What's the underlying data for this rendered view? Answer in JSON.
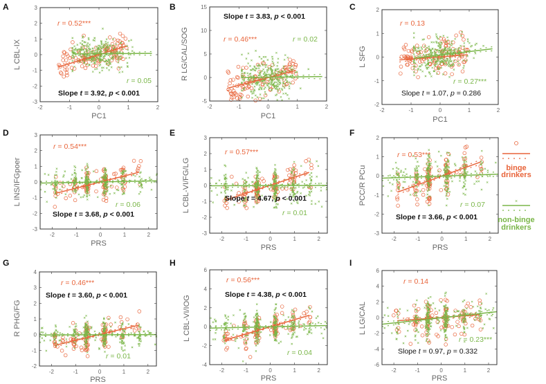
{
  "colors": {
    "binge": "#e8643a",
    "nonbinge": "#7ab648",
    "axis": "#333333",
    "tick_text": "#666666"
  },
  "legend": {
    "binge": {
      "line1": "binge",
      "line2": "drinkers"
    },
    "nonbinge": {
      "line1": "non-binge",
      "line2": "drinkers"
    }
  },
  "chart_data": [
    {
      "panel": "A",
      "type": "scatter",
      "xlabel": "PC1",
      "ylabel": "L CBL-IX",
      "xlim": [
        -2,
        2
      ],
      "ylim": [
        -3,
        3
      ],
      "xticks": [
        -2,
        -1,
        0,
        1,
        2
      ],
      "yticks": [
        -3,
        -2,
        -1,
        0,
        1,
        2,
        3
      ],
      "r_binge": "0.52***",
      "r_nonbinge": "0.05",
      "slope_t": "3.92",
      "slope_p": "< 0.001",
      "significant": true,
      "series": [
        {
          "name": "binge drinkers",
          "n": 110,
          "resid_sd": 0.5,
          "fit": [
            [
              -1.4,
              -0.8
            ],
            [
              0.95,
              0.55
            ]
          ]
        },
        {
          "name": "non-binge drinkers",
          "n": 300,
          "resid_sd": 0.5,
          "fit": [
            [
              -0.9,
              0.05
            ],
            [
              1.8,
              0.08
            ]
          ]
        }
      ]
    },
    {
      "panel": "B",
      "type": "scatter",
      "xlabel": "PC1",
      "ylabel": "R LG/CAL/SOG",
      "xlim": [
        -2,
        2
      ],
      "ylim": [
        -5,
        15
      ],
      "xticks": [
        -2,
        -1,
        0,
        1,
        2
      ],
      "yticks": [
        -5,
        0,
        5,
        10,
        15
      ],
      "r_binge": "0.46***",
      "r_nonbinge": "0.02",
      "slope_t": "3.83",
      "slope_p": "< 0.001",
      "significant": true,
      "series": [
        {
          "name": "binge drinkers",
          "n": 110,
          "resid_sd": 1.8,
          "fit": [
            [
              -1.4,
              -2.3
            ],
            [
              0.95,
              1.5
            ]
          ]
        },
        {
          "name": "non-binge drinkers",
          "n": 300,
          "resid_sd": 2.0,
          "fit": [
            [
              -0.9,
              0.0
            ],
            [
              1.85,
              0.2
            ]
          ]
        }
      ]
    },
    {
      "panel": "C",
      "type": "scatter",
      "xlabel": "PC1",
      "ylabel": "L SFG",
      "xlim": [
        -2,
        2
      ],
      "ylim": [
        -2,
        2
      ],
      "xticks": [
        -2,
        -1,
        0,
        1,
        2
      ],
      "yticks": [
        -2,
        -1,
        0,
        1,
        2
      ],
      "r_binge": "0.13",
      "r_nonbinge": "0.27***",
      "slope_t": "1.07",
      "slope_p": "= 0.286",
      "significant": false,
      "series": [
        {
          "name": "binge drinkers",
          "n": 110,
          "resid_sd": 0.35,
          "fit": [
            [
              -1.4,
              -0.12
            ],
            [
              0.95,
              0.1
            ]
          ]
        },
        {
          "name": "non-binge drinkers",
          "n": 300,
          "resid_sd": 0.35,
          "fit": [
            [
              -0.9,
              -0.05
            ],
            [
              1.8,
              0.35
            ]
          ]
        }
      ]
    },
    {
      "panel": "D",
      "type": "scatter",
      "xlabel": "PRS",
      "ylabel": "L INS/IFGpoer",
      "xlim": [
        -2.5,
        2.35
      ],
      "ylim": [
        -3,
        3
      ],
      "xticks": [
        -2,
        -1,
        0,
        1,
        2
      ],
      "yticks": [
        -3,
        -2,
        -1,
        0,
        1,
        2,
        3
      ],
      "r_binge": "0.54***",
      "r_nonbinge": "0.06",
      "slope_t": "3.68",
      "slope_p": "< 0.001",
      "significant": true,
      "series": [
        {
          "name": "binge drinkers",
          "n": 110,
          "resid_sd": 0.45,
          "fit": [
            [
              -1.85,
              -0.72
            ],
            [
              1.6,
              0.62
            ]
          ]
        },
        {
          "name": "non-binge drinkers",
          "n": 300,
          "resid_sd": 0.45,
          "fit": [
            [
              -2.5,
              -0.07
            ],
            [
              2.35,
              0.07
            ]
          ]
        }
      ]
    },
    {
      "panel": "E",
      "type": "scatter",
      "xlabel": "PRS",
      "ylabel": "L CBL-VI/FG/LG",
      "xlim": [
        -2.5,
        2.35
      ],
      "ylim": [
        -3,
        3
      ],
      "xticks": [
        -2,
        -1,
        0,
        1,
        2
      ],
      "yticks": [
        -3,
        -2,
        -1,
        0,
        1,
        2,
        3
      ],
      "r_binge": "0.57***",
      "r_nonbinge": "0.01",
      "slope_t": "4.67",
      "slope_p": "< 0.001",
      "significant": true,
      "series": [
        {
          "name": "binge drinkers",
          "n": 110,
          "resid_sd": 0.5,
          "fit": [
            [
              -1.85,
              -0.92
            ],
            [
              1.6,
              0.82
            ]
          ]
        },
        {
          "name": "non-binge drinkers",
          "n": 300,
          "resid_sd": 0.6,
          "fit": [
            [
              -2.5,
              -0.02
            ],
            [
              2.35,
              0.0
            ]
          ]
        }
      ]
    },
    {
      "panel": "F",
      "type": "scatter",
      "xlabel": "PRS",
      "ylabel": "PCC/R PCu",
      "xlim": [
        -2.5,
        2.35
      ],
      "ylim": [
        -3,
        2
      ],
      "xticks": [
        -2,
        -1,
        0,
        1,
        2
      ],
      "yticks": [
        -3,
        -2,
        -1,
        0,
        1,
        2
      ],
      "r_binge": "0.53***",
      "r_nonbinge": "0.07",
      "slope_t": "3.66",
      "slope_p": "< 0.001",
      "significant": true,
      "series": [
        {
          "name": "binge drinkers",
          "n": 110,
          "resid_sd": 0.5,
          "fit": [
            [
              -1.85,
              -0.85
            ],
            [
              1.6,
              0.72
            ]
          ]
        },
        {
          "name": "non-binge drinkers",
          "n": 300,
          "resid_sd": 0.5,
          "fit": [
            [
              -2.5,
              -0.12
            ],
            [
              2.35,
              0.09
            ]
          ]
        }
      ]
    },
    {
      "panel": "G",
      "type": "scatter",
      "xlabel": "PRS",
      "ylabel": "R PHG/FG",
      "xlim": [
        -2.5,
        2.35
      ],
      "ylim": [
        -2,
        4
      ],
      "xticks": [
        -2,
        -1,
        0,
        1,
        2
      ],
      "yticks": [
        -2,
        -1,
        0,
        1,
        2,
        3,
        4
      ],
      "r_binge": "0.46***",
      "r_nonbinge": "0.01",
      "slope_t": "3.60",
      "slope_p": "< 0.001",
      "significant": true,
      "series": [
        {
          "name": "binge drinkers",
          "n": 110,
          "resid_sd": 0.45,
          "fit": [
            [
              -1.85,
              -0.68
            ],
            [
              1.6,
              0.6
            ]
          ]
        },
        {
          "name": "non-binge drinkers",
          "n": 300,
          "resid_sd": 0.45,
          "fit": [
            [
              -2.5,
              -0.02
            ],
            [
              2.35,
              0.0
            ]
          ]
        }
      ]
    },
    {
      "panel": "H",
      "type": "scatter",
      "xlabel": "PRS",
      "ylabel": "L CBL-VI/IOG",
      "xlim": [
        -2.5,
        2.35
      ],
      "ylim": [
        -4,
        6
      ],
      "xticks": [
        -2,
        -1,
        0,
        1,
        2
      ],
      "yticks": [
        -4,
        -2,
        0,
        2,
        4,
        6
      ],
      "r_binge": "0.56***",
      "r_nonbinge": "0.04",
      "slope_t": "4.38",
      "slope_p": "< 0.001",
      "significant": true,
      "series": [
        {
          "name": "binge drinkers",
          "n": 110,
          "resid_sd": 0.8,
          "fit": [
            [
              -1.85,
              -1.4
            ],
            [
              1.6,
              1.2
            ]
          ]
        },
        {
          "name": "non-binge drinkers",
          "n": 300,
          "resid_sd": 1.0,
          "fit": [
            [
              -2.5,
              -0.15
            ],
            [
              2.35,
              0.12
            ]
          ]
        }
      ]
    },
    {
      "panel": "I",
      "type": "scatter",
      "xlabel": "PRS",
      "ylabel": "L LG/CAL",
      "xlim": [
        -2.5,
        2.35
      ],
      "ylim": [
        -6,
        6
      ],
      "xticks": [
        -2,
        -1,
        0,
        1,
        2
      ],
      "yticks": [
        -6,
        -4,
        -2,
        0,
        2,
        4,
        6
      ],
      "r_binge": "0.14",
      "r_nonbinge": "0.23***",
      "slope_t": "0.97",
      "slope_p": "= 0.332",
      "significant": false,
      "series": [
        {
          "name": "binge drinkers",
          "n": 110,
          "resid_sd": 1.2,
          "fit": [
            [
              -1.85,
              -0.4
            ],
            [
              1.6,
              0.35
            ]
          ]
        },
        {
          "name": "non-binge drinkers",
          "n": 300,
          "resid_sd": 1.2,
          "fit": [
            [
              -2.5,
              -0.85
            ],
            [
              2.35,
              0.75
            ]
          ]
        }
      ]
    }
  ]
}
